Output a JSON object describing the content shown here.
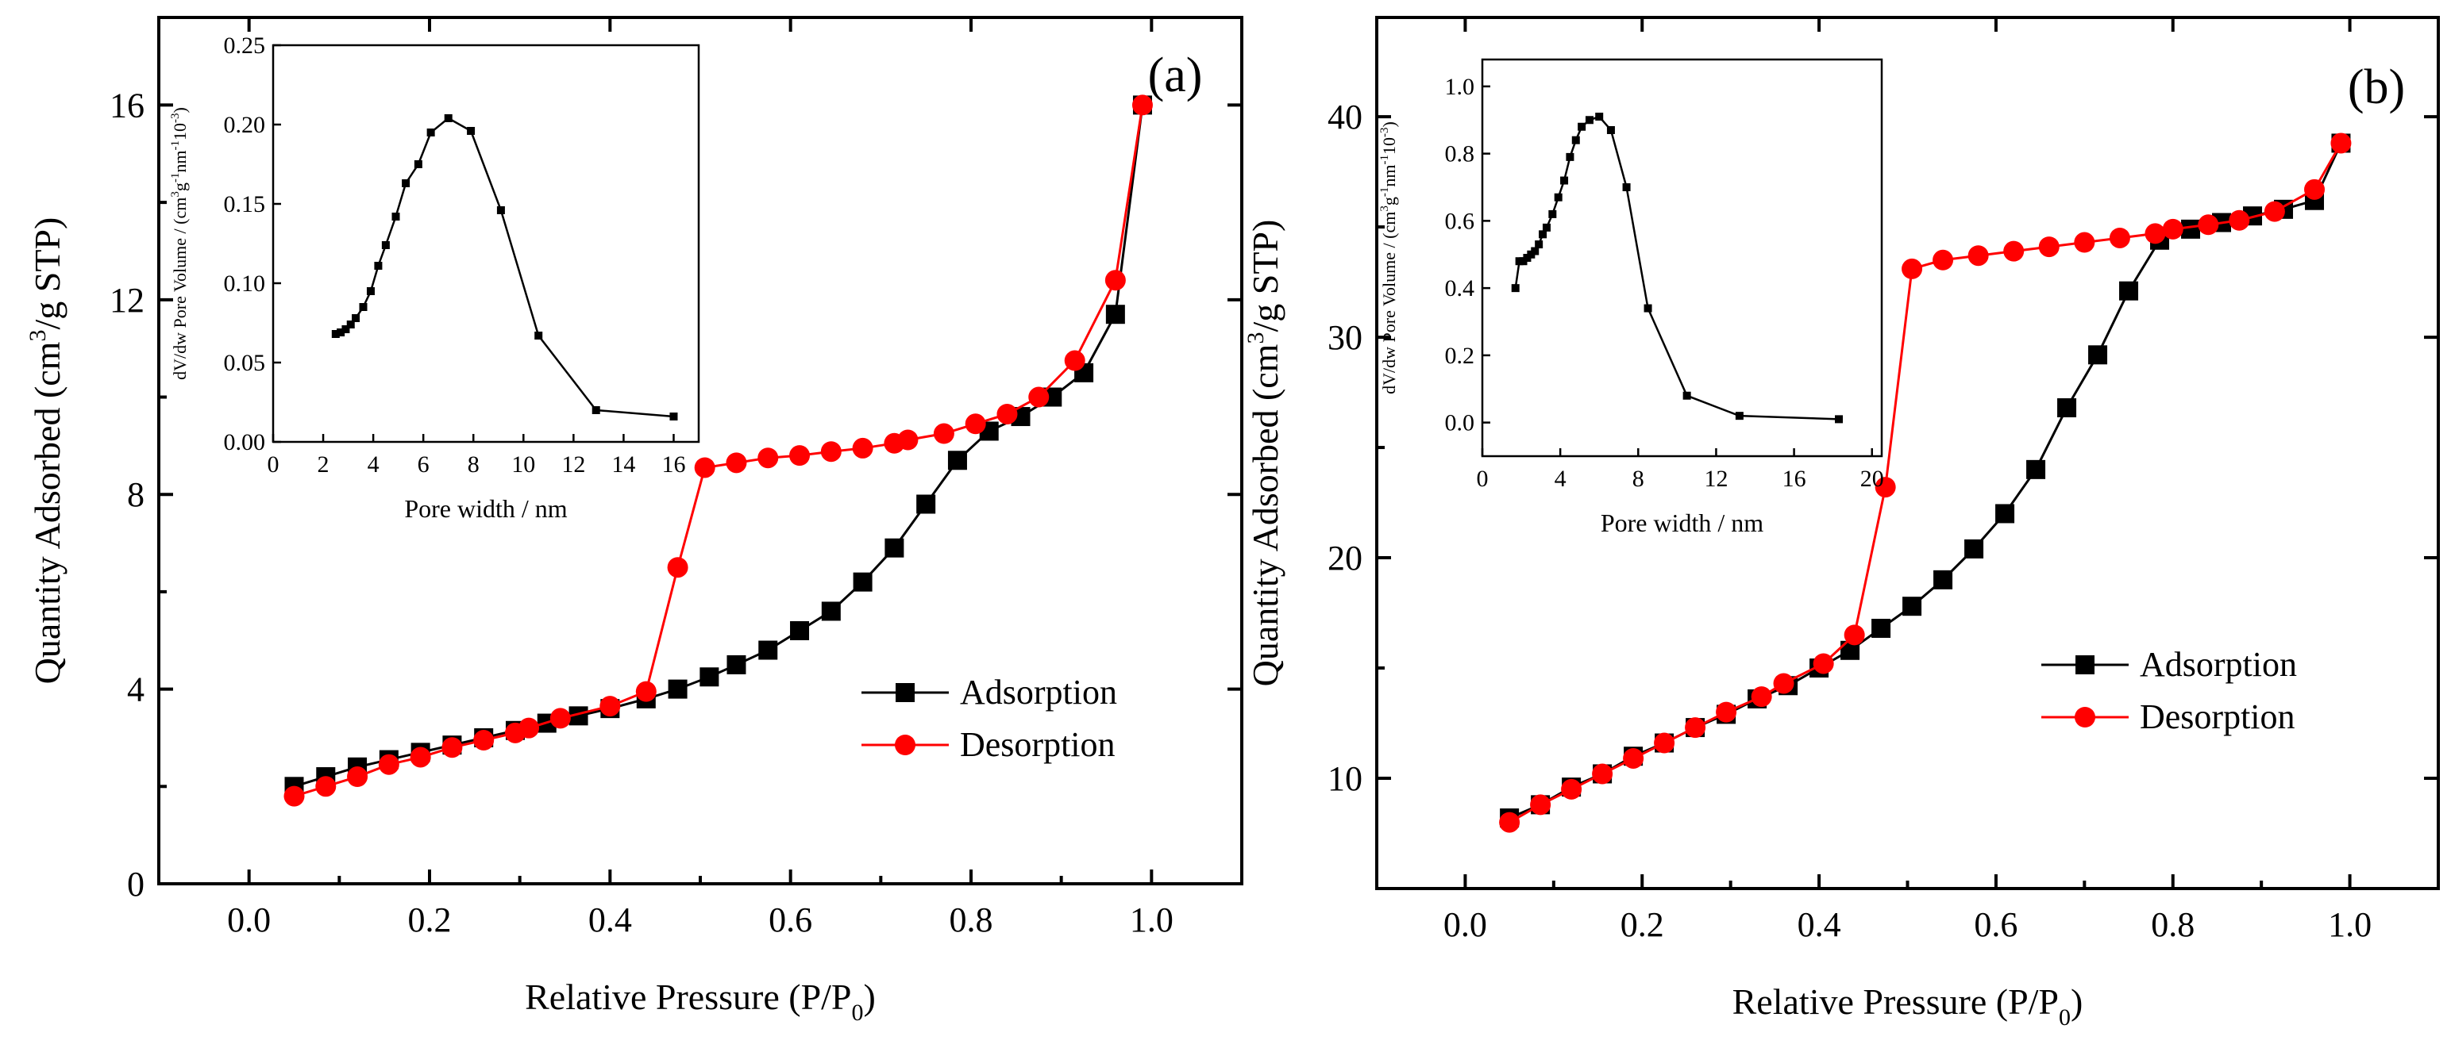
{
  "chart_data": [
    {
      "panel_label": "(a)",
      "type": "line",
      "xlabel": "Relative Pressure (P/P",
      "xlabel_sub": "0",
      "xlabel_end": ")",
      "ylabel": "Quantity Adsorbed (cm",
      "ylabel_sup": "3",
      "ylabel_end": "/g STP)",
      "xlim": [
        -0.1,
        1.1
      ],
      "ylim": [
        0,
        17.8
      ],
      "xticks": [
        0.0,
        0.2,
        0.4,
        0.6,
        0.8,
        1.0
      ],
      "xtick_labels": [
        "0.0",
        "0.2",
        "0.4",
        "0.6",
        "0.8",
        "1.0"
      ],
      "yticks": [
        0,
        4,
        8,
        12,
        16
      ],
      "ytick_labels": [
        "0",
        "4",
        "8",
        "12",
        "16"
      ],
      "legend": [
        "Adsorption",
        "Desorption"
      ],
      "series": [
        {
          "name": "Adsorption",
          "color": "#000000",
          "marker": "square",
          "x": [
            0.05,
            0.085,
            0.12,
            0.155,
            0.19,
            0.225,
            0.26,
            0.295,
            0.33,
            0.365,
            0.4,
            0.44,
            0.475,
            0.51,
            0.54,
            0.575,
            0.61,
            0.645,
            0.68,
            0.715,
            0.75,
            0.785,
            0.82,
            0.855,
            0.89,
            0.925,
            0.96,
            0.99
          ],
          "y": [
            2.0,
            2.2,
            2.4,
            2.55,
            2.7,
            2.85,
            3.0,
            3.15,
            3.3,
            3.45,
            3.6,
            3.8,
            4.0,
            4.25,
            4.5,
            4.8,
            5.2,
            5.6,
            6.2,
            6.9,
            7.8,
            8.7,
            9.3,
            9.6,
            10.0,
            10.5,
            11.7,
            16.0
          ]
        },
        {
          "name": "Desorption",
          "color": "#ff0000",
          "marker": "circle",
          "x": [
            0.05,
            0.085,
            0.12,
            0.155,
            0.19,
            0.225,
            0.26,
            0.295,
            0.31,
            0.345,
            0.4,
            0.44,
            0.475,
            0.505,
            0.54,
            0.575,
            0.61,
            0.645,
            0.68,
            0.715,
            0.73,
            0.77,
            0.805,
            0.84,
            0.875,
            0.915,
            0.96,
            0.99
          ],
          "y": [
            1.8,
            2.0,
            2.2,
            2.45,
            2.6,
            2.8,
            2.95,
            3.1,
            3.2,
            3.4,
            3.65,
            3.95,
            6.5,
            8.55,
            8.65,
            8.75,
            8.8,
            8.88,
            8.95,
            9.05,
            9.12,
            9.25,
            9.45,
            9.65,
            10.0,
            10.75,
            12.4,
            16.0
          ]
        }
      ],
      "inset": {
        "type": "line",
        "xlabel": "Pore width / nm",
        "ylabel": "dV/dw Pore Volume / (cm",
        "ylabel_sup1": "3",
        "ylabel_mid1": "g",
        "ylabel_sup2": "-1",
        "ylabel_mid2": "nm",
        "ylabel_sup3": "-1",
        "ylabel_mid3": "10",
        "ylabel_sup4": "-3",
        "ylabel_end": ")",
        "xlim": [
          0,
          17
        ],
        "ylim": [
          0,
          0.25
        ],
        "xticks": [
          0,
          2,
          4,
          6,
          8,
          10,
          12,
          14,
          16
        ],
        "xtick_labels": [
          "0",
          "2",
          "4",
          "6",
          "8",
          "10",
          "12",
          "14",
          "16"
        ],
        "yticks": [
          0.0,
          0.05,
          0.1,
          0.15,
          0.2,
          0.25
        ],
        "ytick_labels": [
          "0.00",
          "0.05",
          "0.10",
          "0.15",
          "0.20",
          "0.25"
        ],
        "x": [
          2.5,
          2.7,
          2.9,
          3.1,
          3.3,
          3.6,
          3.9,
          4.2,
          4.5,
          4.9,
          5.3,
          5.8,
          6.3,
          7.0,
          7.9,
          9.1,
          10.6,
          12.9,
          16.0
        ],
        "y": [
          0.068,
          0.069,
          0.071,
          0.074,
          0.078,
          0.085,
          0.095,
          0.111,
          0.124,
          0.142,
          0.163,
          0.175,
          0.195,
          0.204,
          0.196,
          0.146,
          0.067,
          0.02,
          0.016
        ]
      }
    },
    {
      "panel_label": "(b)",
      "type": "line",
      "xlabel": "Relative Pressure (P/P",
      "xlabel_sub": "0",
      "xlabel_end": ")",
      "ylabel": "Quantity Adsorbed (cm",
      "ylabel_sup": "3",
      "ylabel_end": "/g STP)",
      "xlim": [
        -0.1,
        1.1
      ],
      "ylim": [
        5,
        44.5
      ],
      "xticks": [
        0.0,
        0.2,
        0.4,
        0.6,
        0.8,
        1.0
      ],
      "xtick_labels": [
        "0.0",
        "0.2",
        "0.4",
        "0.6",
        "0.8",
        "1.0"
      ],
      "yticks": [
        10,
        20,
        30,
        40
      ],
      "ytick_labels": [
        "10",
        "20",
        "30",
        "40"
      ],
      "legend": [
        "Adsorption",
        "Desorption"
      ],
      "series": [
        {
          "name": "Adsorption",
          "color": "#000000",
          "marker": "square",
          "x": [
            0.05,
            0.085,
            0.12,
            0.155,
            0.19,
            0.225,
            0.26,
            0.295,
            0.33,
            0.365,
            0.4,
            0.435,
            0.47,
            0.505,
            0.54,
            0.575,
            0.61,
            0.645,
            0.68,
            0.715,
            0.75,
            0.785,
            0.82,
            0.855,
            0.89,
            0.925,
            0.96,
            0.99
          ],
          "y": [
            8.2,
            8.8,
            9.6,
            10.2,
            11.0,
            11.6,
            12.3,
            12.9,
            13.6,
            14.2,
            15.0,
            15.8,
            16.8,
            17.8,
            19.0,
            20.4,
            22.0,
            24.0,
            26.8,
            29.2,
            32.1,
            34.4,
            34.9,
            35.2,
            35.5,
            35.8,
            36.2,
            38.8
          ]
        },
        {
          "name": "Desorption",
          "color": "#ff0000",
          "marker": "circle",
          "x": [
            0.05,
            0.085,
            0.12,
            0.155,
            0.19,
            0.225,
            0.26,
            0.295,
            0.335,
            0.36,
            0.405,
            0.44,
            0.475,
            0.505,
            0.54,
            0.58,
            0.62,
            0.66,
            0.7,
            0.74,
            0.78,
            0.8,
            0.84,
            0.875,
            0.915,
            0.96,
            0.99
          ],
          "y": [
            8.0,
            8.8,
            9.5,
            10.2,
            10.9,
            11.6,
            12.3,
            13.0,
            13.7,
            14.3,
            15.2,
            16.5,
            23.2,
            33.1,
            33.5,
            33.7,
            33.9,
            34.1,
            34.3,
            34.5,
            34.7,
            34.9,
            35.1,
            35.3,
            35.7,
            36.7,
            38.8
          ]
        }
      ],
      "inset": {
        "type": "line",
        "xlabel": "Pore width / nm",
        "ylabel": "dV/dw Pore Volume / (cm",
        "ylabel_sup1": "3",
        "ylabel_mid1": "g",
        "ylabel_sup2": "-1",
        "ylabel_mid2": "nm",
        "ylabel_sup3": "-1",
        "ylabel_mid3": "10",
        "ylabel_sup4": "-3",
        "ylabel_end": ")",
        "xlim": [
          0,
          20.5
        ],
        "ylim": [
          -0.1,
          1.08
        ],
        "xticks": [
          0,
          4,
          8,
          12,
          16,
          20
        ],
        "xtick_labels": [
          "0",
          "4",
          "8",
          "12",
          "16",
          "20"
        ],
        "yticks": [
          0.0,
          0.2,
          0.4,
          0.6,
          0.8,
          1.0
        ],
        "ytick_labels": [
          "0.0",
          "0.2",
          "0.4",
          "0.6",
          "0.8",
          "1.0"
        ],
        "x": [
          1.7,
          1.9,
          2.1,
          2.3,
          2.5,
          2.7,
          2.9,
          3.1,
          3.3,
          3.6,
          3.9,
          4.2,
          4.5,
          4.8,
          5.1,
          5.5,
          6.0,
          6.6,
          7.4,
          8.5,
          10.5,
          13.2,
          18.3
        ],
        "y": [
          0.4,
          0.48,
          0.48,
          0.49,
          0.5,
          0.51,
          0.53,
          0.56,
          0.58,
          0.62,
          0.67,
          0.72,
          0.79,
          0.84,
          0.88,
          0.9,
          0.91,
          0.87,
          0.7,
          0.34,
          0.08,
          0.02,
          0.01
        ]
      }
    }
  ]
}
